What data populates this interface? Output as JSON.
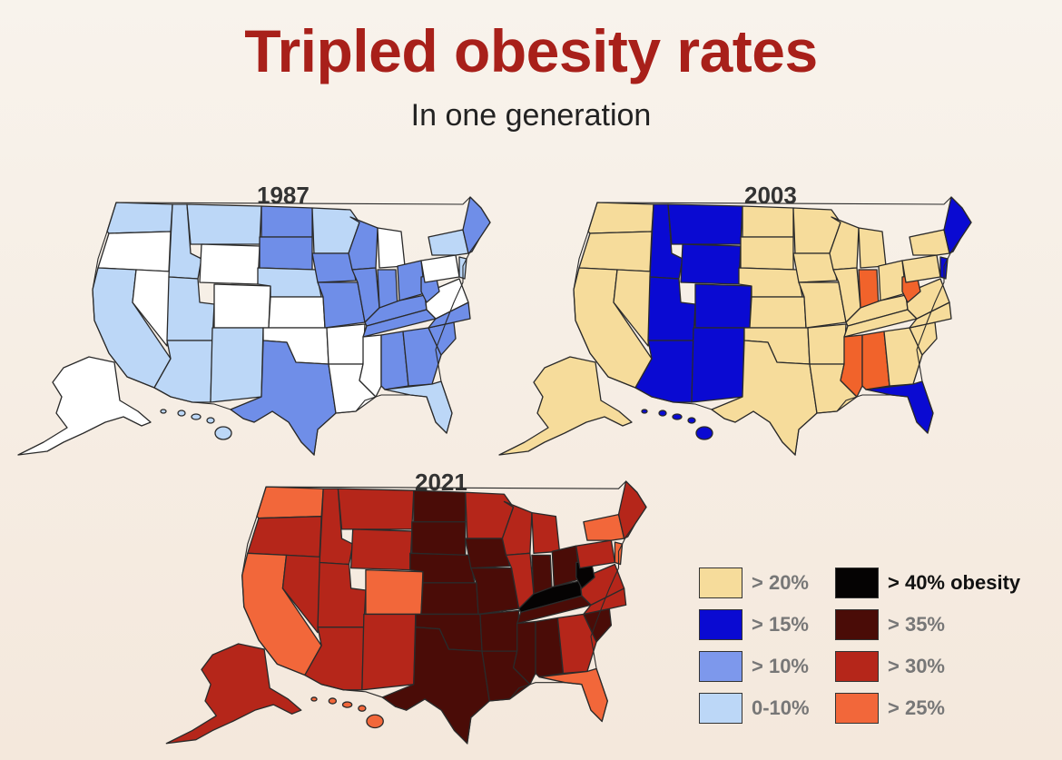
{
  "title": "Tripled obesity rates",
  "subtitle": "In one generation",
  "maps": [
    {
      "year": "1987",
      "colors": {
        "a": "#ffffff",
        "b": "#bcd7f7",
        "c": "#6f8ee8"
      }
    },
    {
      "year": "2003",
      "colors": {
        "a": "#f6dc9b",
        "b": "#0a0ad2",
        "c": "#f1632b"
      }
    },
    {
      "year": "2021",
      "colors": {
        "a": "#f2673a",
        "b": "#b5261a",
        "c": "#4a0c07",
        "d": "#050303"
      }
    }
  ],
  "legend": [
    {
      "label": "> 20%",
      "color": "#f6dc9b"
    },
    {
      "label": "> 15%",
      "color": "#0a0ad2"
    },
    {
      "label": "> 10%",
      "color": "#7d98ec"
    },
    {
      "label": "0-10%",
      "color": "#bcd7f7"
    },
    {
      "label": "> 40% obesity",
      "color": "#050303"
    },
    {
      "label": "> 35%",
      "color": "#4a0c07"
    },
    {
      "label": "> 30%",
      "color": "#b5261a"
    },
    {
      "label": "> 25%",
      "color": "#f2673a"
    }
  ]
}
